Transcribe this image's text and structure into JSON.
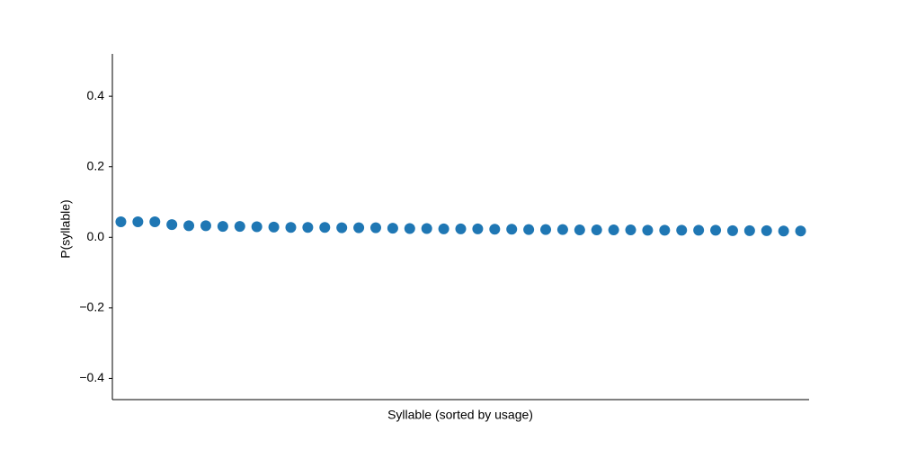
{
  "chart_data": {
    "type": "scatter",
    "title": "",
    "xlabel": "Syllable (sorted by usage)",
    "ylabel": "P(syllable)",
    "ylim": [
      -0.46,
      0.52
    ],
    "xlim": [
      0.5,
      41.5
    ],
    "yticks": [
      -0.4,
      -0.2,
      0.0,
      0.2,
      0.4
    ],
    "ytick_labels": [
      "−0.4",
      "−0.2",
      "0.0",
      "0.2",
      "0.4"
    ],
    "xticks_visible": false,
    "grid": false,
    "legend": "none",
    "marker_color": "#1f77b4",
    "series": [
      {
        "x": [
          1,
          2,
          3,
          4,
          5,
          6,
          7,
          8,
          9,
          10,
          11,
          12,
          13,
          14,
          15,
          16,
          17,
          18,
          19,
          20,
          21,
          22,
          23,
          24,
          25,
          26,
          27,
          28,
          29,
          30,
          31,
          32,
          33,
          34,
          35,
          36,
          37,
          38,
          39,
          40,
          41
        ],
        "values": [
          0.044,
          0.044,
          0.044,
          0.036,
          0.033,
          0.033,
          0.031,
          0.031,
          0.03,
          0.029,
          0.028,
          0.028,
          0.028,
          0.027,
          0.027,
          0.027,
          0.026,
          0.025,
          0.025,
          0.024,
          0.024,
          0.024,
          0.023,
          0.023,
          0.022,
          0.022,
          0.022,
          0.021,
          0.021,
          0.021,
          0.021,
          0.02,
          0.02,
          0.02,
          0.02,
          0.02,
          0.019,
          0.019,
          0.019,
          0.018,
          0.018
        ]
      }
    ]
  }
}
